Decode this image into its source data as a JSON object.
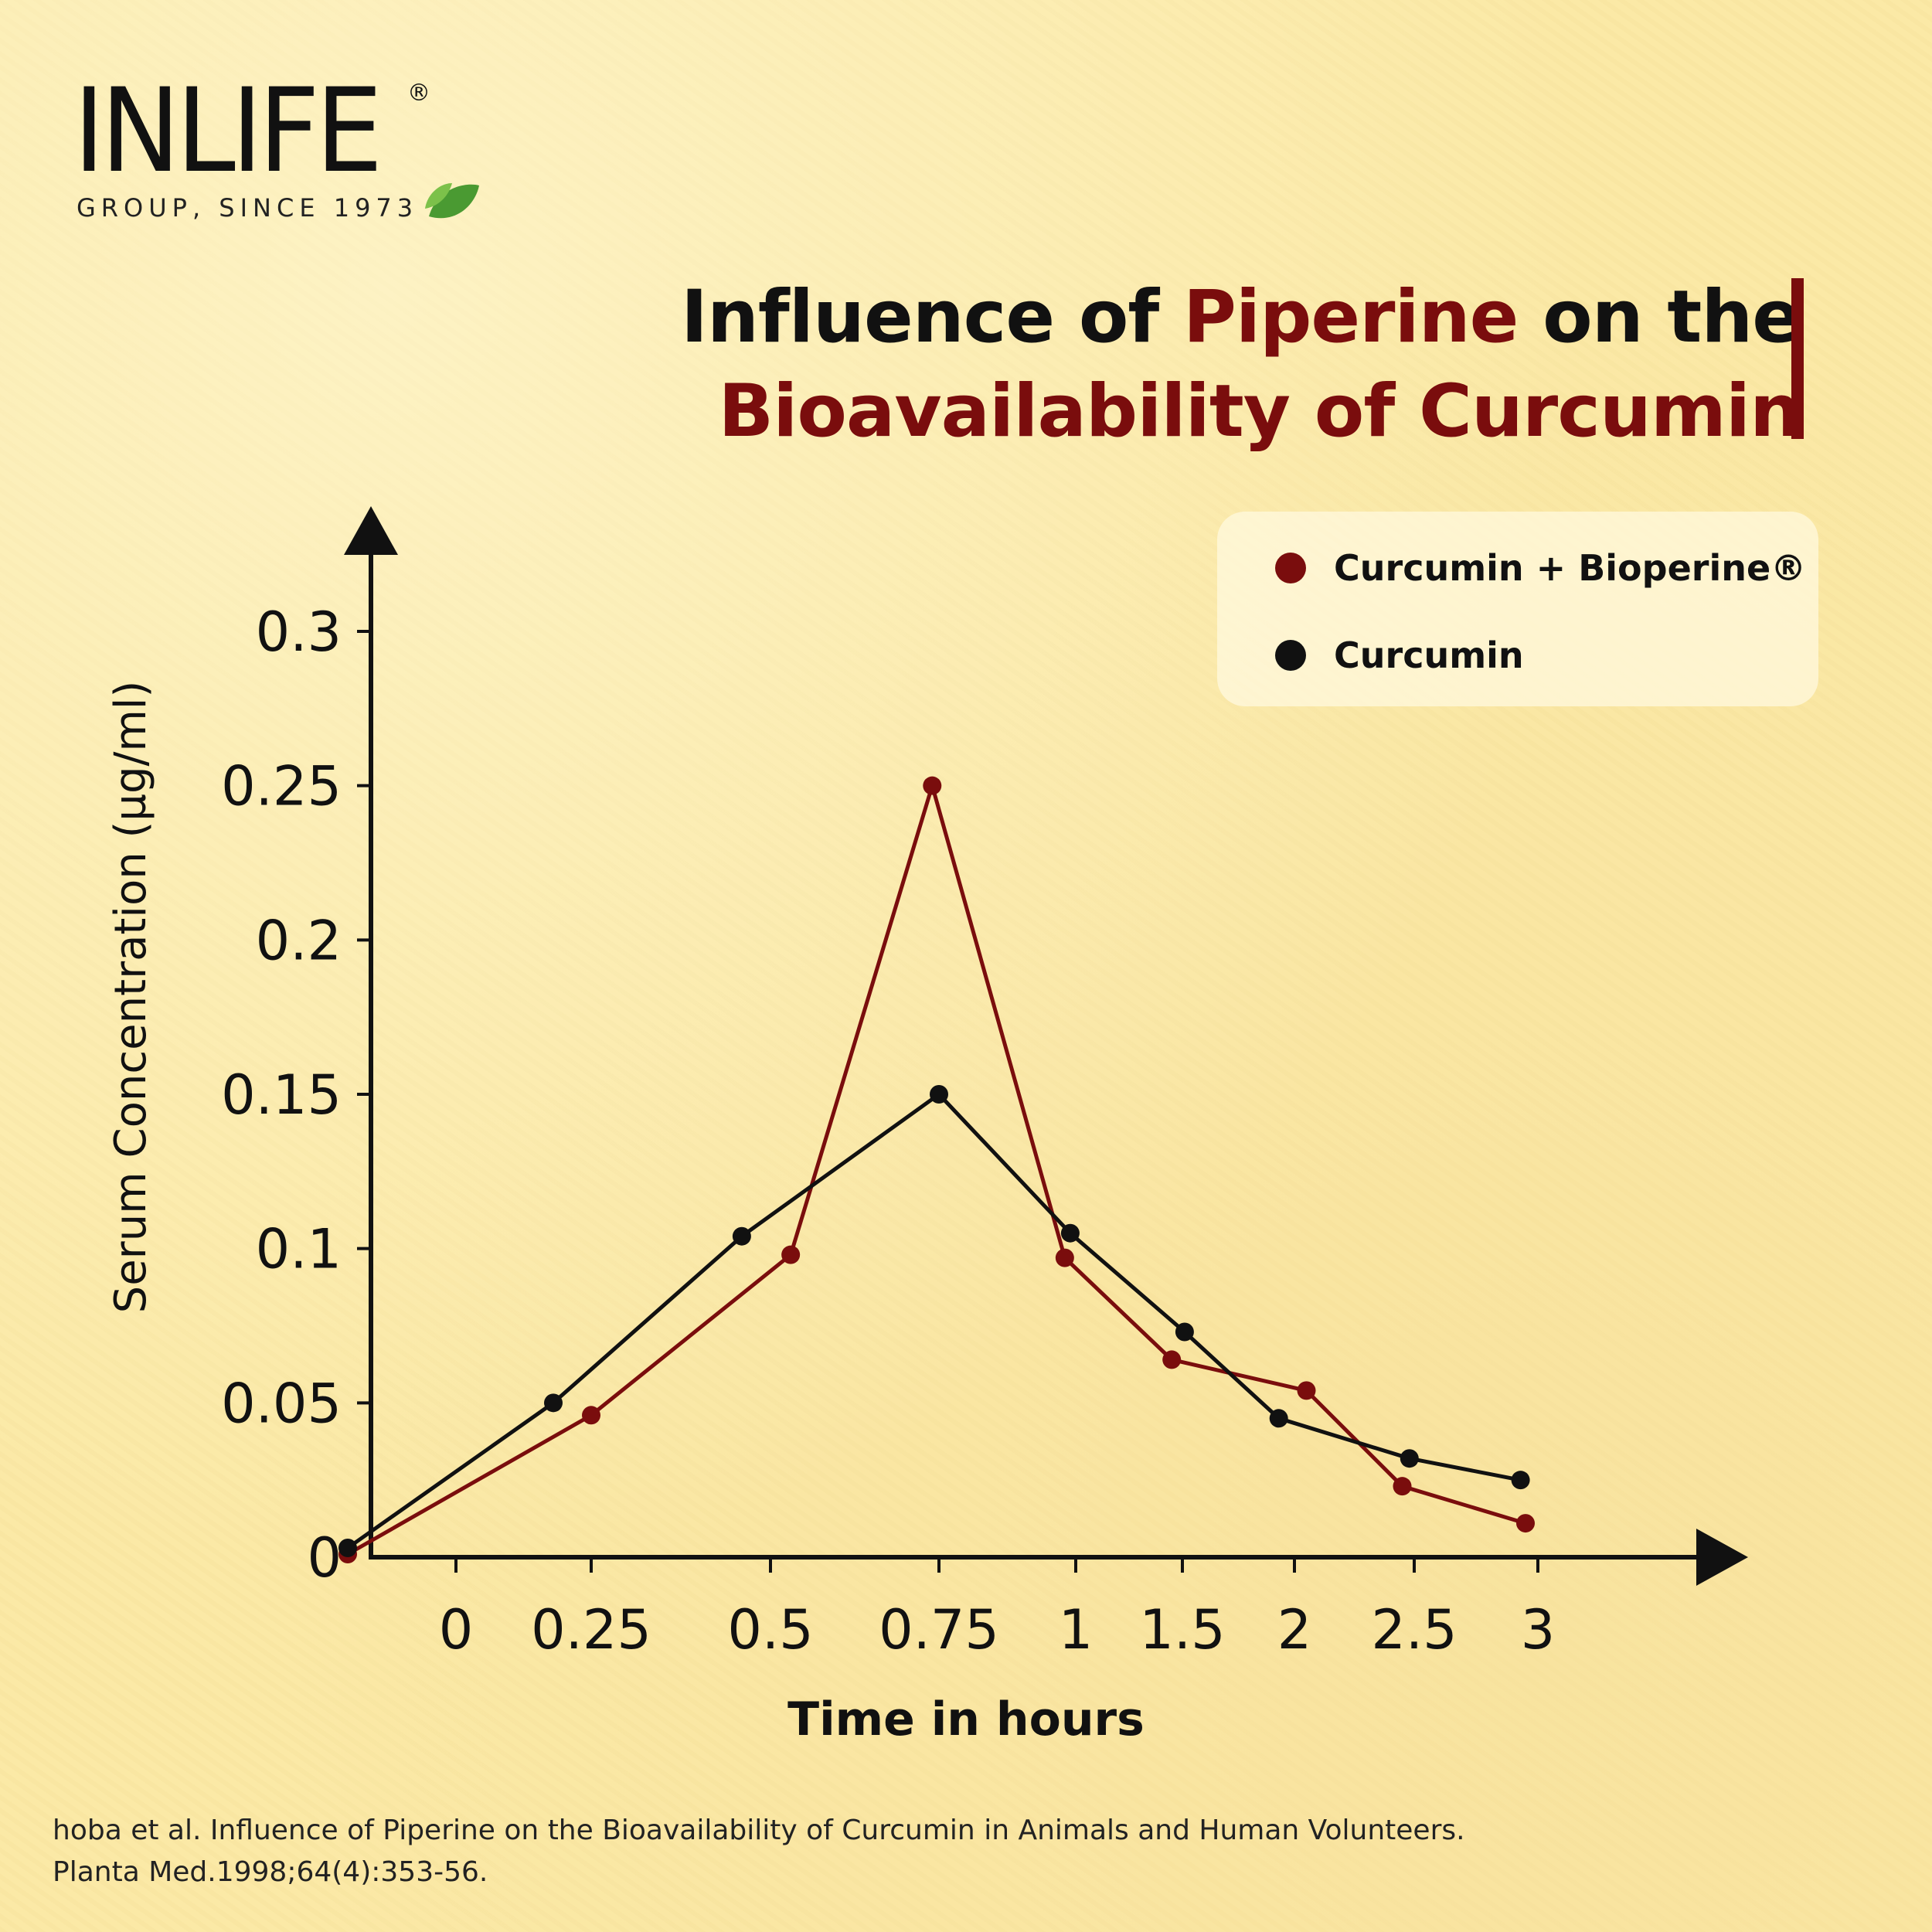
{
  "logo": {
    "word": "INLIFE",
    "tagline": "GROUP, SINCE 1973",
    "reg": "®"
  },
  "title": {
    "line1_a": "Influence of ",
    "line1_b": "Piperine",
    "line1_c": " on the",
    "line2": "Bioavailability of Curcumin"
  },
  "legend": {
    "items": [
      {
        "label": "Curcumin + Bioperine®",
        "color": "#7a0d0d"
      },
      {
        "label": "Curcumin",
        "color": "#111111"
      }
    ]
  },
  "chart_data": {
    "type": "line",
    "xlabel": "Time in hours",
    "ylabel": "Serum Concentration (µg/ml)",
    "x_tick_labels": [
      "0",
      "0.25",
      "0.5",
      "0.75",
      "1",
      "1.5",
      "2",
      "2.5",
      "3"
    ],
    "y_tick_labels": [
      "0",
      "0.05",
      "0.1",
      "0.15",
      "0.2",
      "0.25",
      "0.3"
    ],
    "ylim": [
      0,
      0.3
    ],
    "grid": false,
    "legend_position": "top-right",
    "series": [
      {
        "name": "Curcumin + Bioperine®",
        "color": "#7a0d0d",
        "points": [
          {
            "x": -0.2,
            "y": 0.001
          },
          {
            "x": 0.25,
            "y": 0.046
          },
          {
            "x": 0.53,
            "y": 0.098
          },
          {
            "x": 0.74,
            "y": 0.25
          },
          {
            "x": 0.98,
            "y": 0.097
          },
          {
            "x": 1.45,
            "y": 0.064
          },
          {
            "x": 2.05,
            "y": 0.054
          },
          {
            "x": 2.45,
            "y": 0.023
          },
          {
            "x": 2.95,
            "y": 0.011
          }
        ]
      },
      {
        "name": "Curcumin",
        "color": "#111111",
        "points": [
          {
            "x": -0.2,
            "y": 0.003
          },
          {
            "x": 0.18,
            "y": 0.05
          },
          {
            "x": 0.46,
            "y": 0.104
          },
          {
            "x": 0.75,
            "y": 0.15
          },
          {
            "x": 0.99,
            "y": 0.105
          },
          {
            "x": 1.51,
            "y": 0.073
          },
          {
            "x": 1.93,
            "y": 0.045
          },
          {
            "x": 2.48,
            "y": 0.032
          },
          {
            "x": 2.93,
            "y": 0.025
          }
        ]
      }
    ]
  },
  "citation": {
    "line1": "hoba et al. Influence of Piperine on the Bioavailability of Curcumin in Animals and Human Volunteers.",
    "line2": "Planta Med.1998;64(4):353-56."
  }
}
